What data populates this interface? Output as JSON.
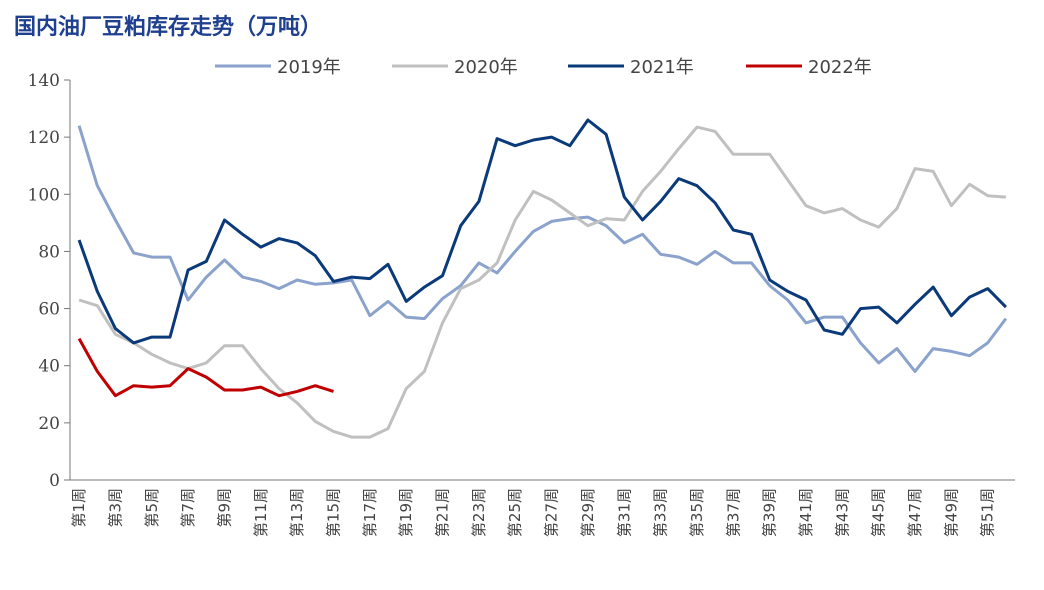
{
  "chart_data": {
    "type": "line",
    "title": "国内油厂豆粕库存走势（万吨）",
    "categories": [
      "第1周",
      null,
      "第3周",
      null,
      "第5周",
      null,
      "第7周",
      null,
      "第9周",
      null,
      "第11周",
      null,
      "第13周",
      null,
      "第15周",
      null,
      "第17周",
      null,
      "第19周",
      null,
      "第21周",
      null,
      "第23周",
      null,
      "第25周",
      null,
      "第27周",
      null,
      "第29周",
      null,
      "第31周",
      null,
      "第33周",
      null,
      "第35周",
      null,
      "第37周",
      null,
      "第39周",
      null,
      "第41周",
      null,
      "第43周",
      null,
      "第45周",
      null,
      "第47周",
      null,
      "第49周",
      null,
      "第51周",
      null
    ],
    "series": [
      {
        "name": "2019年",
        "color": "#8aa2cc",
        "values": [
          124,
          103,
          91,
          79.5,
          78,
          78,
          63,
          71,
          77,
          71,
          69.5,
          67,
          70,
          68.5,
          69,
          70,
          57.5,
          62.5,
          57,
          56.5,
          63.5,
          68,
          76,
          72.5,
          80,
          87,
          90.5,
          91.5,
          92,
          89,
          83,
          86,
          79,
          78,
          75.5,
          80,
          76,
          76,
          68,
          63,
          55,
          57,
          57,
          48,
          41,
          46,
          38,
          46,
          45,
          43.5,
          48,
          56.5
        ]
      },
      {
        "name": "2020年",
        "color": "#c0c0c0",
        "values": [
          63,
          61,
          51,
          48,
          44,
          41,
          39,
          41,
          47,
          47,
          39,
          32,
          27,
          20.5,
          17,
          15,
          15,
          18,
          32,
          38,
          55,
          67,
          70,
          76,
          91,
          101,
          98,
          93.5,
          89,
          91.5,
          91,
          101,
          108,
          116,
          123.5,
          122,
          114,
          114,
          114,
          105,
          96,
          93.5,
          95,
          91,
          88.5,
          95,
          109,
          108,
          96,
          103.5,
          99.5,
          99
        ]
      },
      {
        "name": "2021年",
        "color": "#0a3a7a",
        "values": [
          84,
          66,
          53,
          48,
          50,
          50,
          73.5,
          76.5,
          91,
          86,
          81.5,
          84.5,
          83,
          78.5,
          69.5,
          71,
          70.5,
          75.5,
          62.5,
          67.5,
          71.5,
          89,
          97.5,
          119.5,
          117,
          119,
          120,
          117,
          126,
          121,
          99,
          91,
          97.5,
          105.5,
          103,
          97,
          87.5,
          86,
          70,
          66,
          63,
          52.5,
          51,
          60,
          60.5,
          55,
          61.5,
          67.5,
          57.5,
          64,
          67,
          60.5
        ]
      },
      {
        "name": "2022年",
        "color": "#c00000",
        "values": [
          49.5,
          38,
          29.5,
          33,
          32.5,
          33,
          39,
          36,
          31.5,
          31.5,
          32.5,
          29.5,
          31,
          33,
          31,
          null,
          null,
          null,
          null,
          null,
          null,
          null,
          null,
          null,
          null,
          null,
          null,
          null,
          null,
          null,
          null,
          null,
          null,
          null,
          null,
          null,
          null,
          null,
          null,
          null,
          null,
          null,
          null,
          null,
          null,
          null,
          null,
          null,
          null,
          null,
          null,
          null
        ]
      }
    ],
    "ylim": [
      0,
      140
    ],
    "yticks": [
      0,
      20,
      40,
      60,
      80,
      100,
      120,
      140
    ]
  }
}
